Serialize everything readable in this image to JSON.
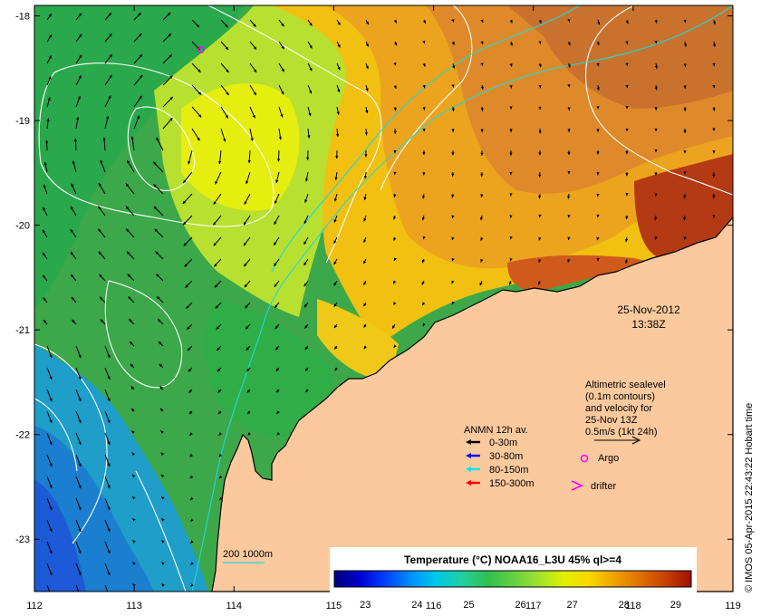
{
  "map": {
    "x_ticks": [
      "112",
      "113",
      "114",
      "115",
      "116",
      "117",
      "118",
      "119"
    ],
    "y_ticks": [
      "-18",
      "-19",
      "-20",
      "-21",
      "-22",
      "-23"
    ],
    "lon_range": [
      112,
      119
    ],
    "lat_range": [
      -23.5,
      -17.9
    ],
    "date_label": "25-Nov-2012",
    "time_label": "13:38Z"
  },
  "altimetry_note": {
    "lines": [
      "Altimetric sealevel",
      "(0.1m contours)",
      "and velocity for",
      "25-Nov 13Z",
      "0.5m/s (1kt 24h)"
    ]
  },
  "legend": {
    "title": "ANMN 12h av.",
    "items": [
      {
        "label": "0-30m",
        "color": "#000000"
      },
      {
        "label": "30-80m",
        "color": "#0000ff"
      },
      {
        "label": "80-150m",
        "color": "#00e5e5"
      },
      {
        "label": "150-300m",
        "color": "#ff0000"
      }
    ],
    "argo_label": "Argo",
    "argo_color": "#ff00ff",
    "drifter_label": "drifter",
    "drifter_color": "#ff00ff"
  },
  "depth_contours": {
    "label": "200  1000m",
    "color": "#00cccc"
  },
  "colorbar": {
    "title": "Temperature (°C) NOAA16_L3U 45% ql>=4",
    "ticks": [
      "23",
      "24",
      "25",
      "26",
      "27",
      "28",
      "29"
    ],
    "range": [
      22.4,
      29.3
    ],
    "colors": [
      "#000080",
      "#0000d0",
      "#0040ff",
      "#0090ff",
      "#00c8e8",
      "#20d0a0",
      "#30c050",
      "#60d040",
      "#a0e030",
      "#e0f000",
      "#f8d800",
      "#f0a000",
      "#e07000",
      "#c84000",
      "#a01000"
    ]
  },
  "side_label": "© IMOS 05-Apr-2015 22:43:22 Hobart time",
  "colors": {
    "land": "#fbc99d",
    "contour": "#ffffff"
  }
}
